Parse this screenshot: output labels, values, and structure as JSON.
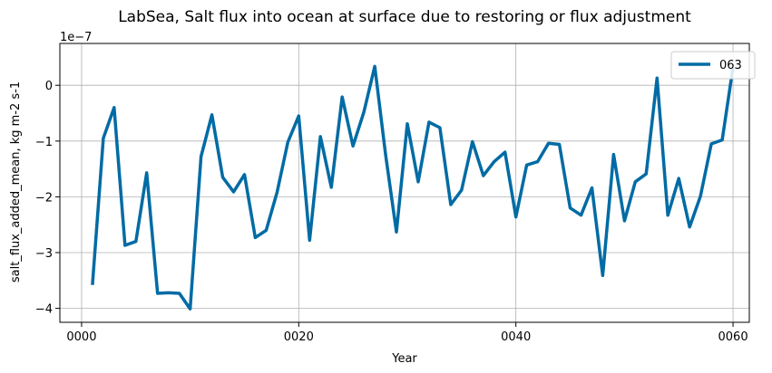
{
  "chart_data": {
    "type": "line",
    "title": "LabSea, Salt flux into ocean at surface due to restoring or flux adjustment",
    "xlabel": "Year",
    "ylabel": "salt_flux_added_mean, kg m-2 s-1",
    "y_offset_text": "1e−7",
    "xlim": [
      -2,
      61.5
    ],
    "ylim": [
      -4.25,
      0.75
    ],
    "x_ticks": [
      0,
      20,
      40,
      60
    ],
    "x_tick_labels": [
      "0000",
      "0020",
      "0040",
      "0060"
    ],
    "y_ticks": [
      -4,
      -3,
      -2,
      -1,
      0
    ],
    "y_tick_labels": [
      "−4",
      "−3",
      "−2",
      "−1",
      "0"
    ],
    "grid": true,
    "legend_position": "top-right",
    "series": [
      {
        "name": "063",
        "color": "#006ba4",
        "x": [
          1,
          2,
          3,
          4,
          5,
          6,
          7,
          8,
          9,
          10,
          11,
          12,
          13,
          14,
          15,
          16,
          17,
          18,
          19,
          20,
          21,
          22,
          23,
          24,
          25,
          26,
          27,
          28,
          29,
          30,
          31,
          32,
          33,
          34,
          35,
          36,
          37,
          38,
          39,
          40,
          41,
          42,
          43,
          44,
          45,
          46,
          47,
          48,
          49,
          50,
          51,
          52,
          53,
          54,
          55,
          56,
          57,
          58,
          59,
          60
        ],
        "y": [
          -3.58,
          -0.95,
          -0.4,
          -2.87,
          -2.8,
          -1.57,
          -3.73,
          -3.72,
          -3.73,
          -4.01,
          -1.28,
          -0.53,
          -1.65,
          -1.91,
          -1.6,
          -2.73,
          -2.6,
          -1.92,
          -1.02,
          -0.55,
          -2.78,
          -0.92,
          -1.83,
          -0.21,
          -1.09,
          -0.48,
          0.34,
          -1.25,
          -2.63,
          -0.69,
          -1.73,
          -0.66,
          -0.76,
          -2.14,
          -1.88,
          -1.01,
          -1.62,
          -1.37,
          -1.2,
          -2.36,
          -1.43,
          -1.37,
          -1.04,
          -1.06,
          -2.2,
          -2.33,
          -1.84,
          -3.41,
          -1.24,
          -2.43,
          -1.73,
          -1.59,
          0.13,
          -2.33,
          -1.67,
          -2.54,
          -1.99,
          -1.05,
          -0.98,
          0.32
        ]
      }
    ]
  }
}
